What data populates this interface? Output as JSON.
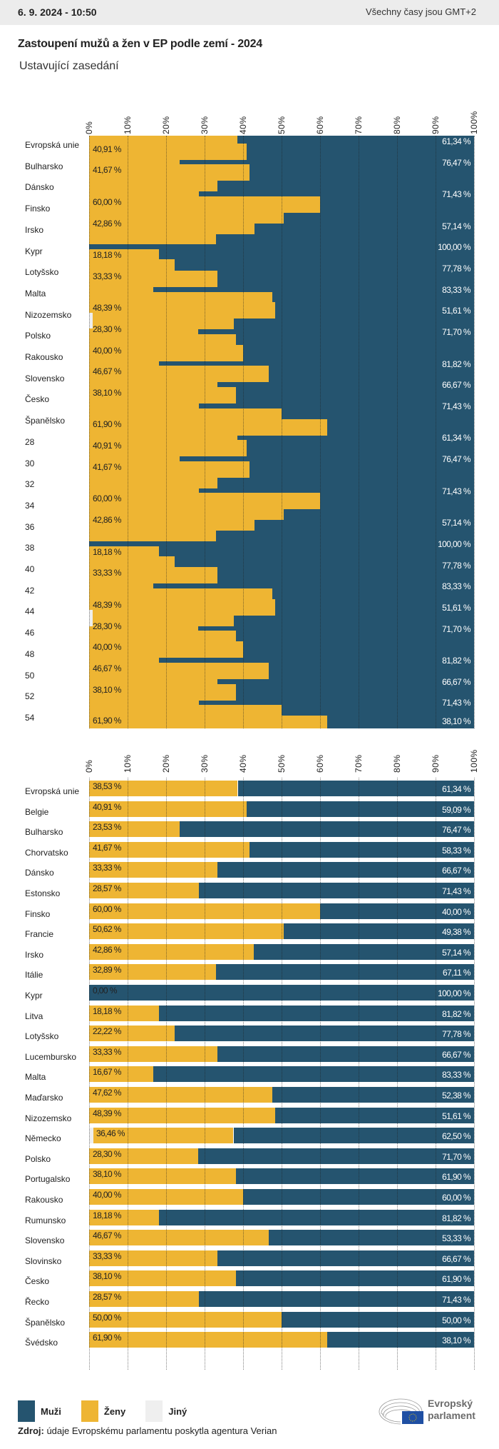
{
  "header": {
    "datetime": "6. 9. 2024 - 10:50",
    "timezone_note": "Všechny časy jsou GMT+2"
  },
  "title": "Zastoupení mužů a žen v EP podle zemí - 2024",
  "subtitle": "Ustavující zasedání",
  "colors": {
    "muzi": "#25546f",
    "zeny": "#eeb533",
    "jiny": "#efefef",
    "header_bg": "#ececec"
  },
  "chart_data": [
    {
      "type": "bar",
      "stacked": true,
      "orientation": "horizontal",
      "state": "transition rendering (bars overlapping)",
      "xlim": [
        0,
        100
      ],
      "x_ticks": [
        "0%",
        "10%",
        "20%",
        "30%",
        "40%",
        "50%",
        "60%",
        "70%",
        "80%",
        "90%",
        "100%"
      ],
      "row_labels": [
        "Evropská unie",
        "Bulharsko",
        "Dánsko",
        "Finsko",
        "Irsko",
        "Kypr",
        "Lotyšsko",
        "Malta",
        "Nizozemsko",
        "Polsko",
        "Rakousko",
        "Slovensko",
        "Česko",
        "Španělsko",
        "28",
        "30",
        "32",
        "34",
        "36",
        "38",
        "40",
        "42",
        "44",
        "46",
        "48",
        "50",
        "52",
        "54"
      ],
      "zeny_labels": [
        "40,91 %",
        "41,67 %",
        "60,00 %",
        "42,86 %",
        "18,18 %",
        "33,33 %",
        "48,39 %",
        "28,30 %",
        "40,00 %",
        "46,67 %",
        "38,10 %",
        "61,90 %",
        "40,91 %",
        "41,67 %",
        "60,00 %",
        "42,86 %",
        "18,18 %",
        "33,33 %",
        "48,39 %",
        "28,30 %",
        "40,00 %",
        "46,67 %",
        "38,10 %",
        "61,90 %"
      ],
      "muzi_labels": [
        "61,34 %",
        "76,47 %",
        "71,43 %",
        "57,14 %",
        "100,00 %",
        "77,78 %",
        "83,33 %",
        "51,61 %",
        "71,70 %",
        "81,82 %",
        "66,67 %",
        "71,43 %",
        "61,34 %",
        "76,47 %",
        "71,43 %",
        "57,14 %",
        "100,00 %",
        "77,78 %",
        "83,33 %",
        "51,61 %",
        "71,70 %",
        "81,82 %",
        "66,67 %",
        "71,43 %",
        "38,10 %"
      ],
      "zeny_fill_steps_pct": [
        38.5,
        40.9,
        23.5,
        41.7,
        33.3,
        28.6,
        60.0,
        50.6,
        42.9,
        32.9,
        0,
        18.2,
        22.2,
        33.3,
        16.7,
        47.6,
        48.4,
        37.5,
        28.3,
        38.1,
        40.0,
        18.2,
        46.7,
        33.3,
        38.1,
        28.6,
        50.0,
        61.9,
        38.5,
        40.9,
        23.5,
        41.7,
        33.3,
        28.6,
        60.0,
        50.6,
        42.9,
        32.9,
        0,
        18.2,
        22.2,
        33.3,
        16.7,
        47.6,
        48.4,
        37.5,
        28.3,
        38.1,
        40.0,
        18.2,
        46.7,
        33.3,
        38.1,
        28.6,
        50.0,
        61.9
      ]
    },
    {
      "type": "bar",
      "stacked": true,
      "orientation": "horizontal",
      "xlim": [
        0,
        100
      ],
      "grid": true,
      "x_ticks": [
        "0%",
        "10%",
        "20%",
        "30%",
        "40%",
        "50%",
        "60%",
        "70%",
        "80%",
        "90%",
        "100%"
      ],
      "categories": [
        "Evropská unie",
        "Belgie",
        "Bulharsko",
        "Chorvatsko",
        "Dánsko",
        "Estonsko",
        "Finsko",
        "Francie",
        "Irsko",
        "Itálie",
        "Kypr",
        "Litva",
        "Lotyšsko",
        "Lucembursko",
        "Malta",
        "Maďarsko",
        "Nizozemsko",
        "Německo",
        "Polsko",
        "Portugalsko",
        "Rakousko",
        "Rumunsko",
        "Slovensko",
        "Slovinsko",
        "Česko",
        "Řecko",
        "Španělsko",
        "Švédsko"
      ],
      "series": [
        {
          "name": "Ženy",
          "values": [
            38.53,
            40.91,
            23.53,
            41.67,
            33.33,
            28.57,
            60.0,
            50.62,
            42.86,
            32.89,
            0.0,
            18.18,
            22.22,
            33.33,
            16.67,
            47.62,
            48.39,
            36.46,
            28.3,
            38.1,
            40.0,
            18.18,
            46.67,
            33.33,
            38.1,
            28.57,
            50.0,
            61.9
          ],
          "labels": [
            "38,53 %",
            "40,91 %",
            "23,53 %",
            "41,67 %",
            "33,33 %",
            "28,57 %",
            "60,00 %",
            "50,62 %",
            "42,86 %",
            "32,89 %",
            "0,00 %",
            "18,18 %",
            "22,22 %",
            "33,33 %",
            "16,67 %",
            "47,62 %",
            "48,39 %",
            "36,46 %",
            "28,30 %",
            "38,10 %",
            "40,00 %",
            "18,18 %",
            "46,67 %",
            "33,33 %",
            "38,10 %",
            "28,57 %",
            "50,00 %",
            "61,90 %"
          ]
        },
        {
          "name": "Jiný",
          "values": [
            0.13,
            0,
            0,
            0,
            0,
            0,
            0,
            0,
            0,
            0,
            0,
            0,
            0,
            0,
            0,
            0,
            0,
            1.04,
            0,
            0,
            0,
            0,
            0,
            0,
            0,
            0,
            0,
            0
          ]
        },
        {
          "name": "Muži",
          "values": [
            61.34,
            59.09,
            76.47,
            58.33,
            66.67,
            71.43,
            40.0,
            49.38,
            57.14,
            67.11,
            100.0,
            81.82,
            77.78,
            66.67,
            83.33,
            52.38,
            51.61,
            62.5,
            71.7,
            61.9,
            60.0,
            81.82,
            53.33,
            66.67,
            61.9,
            71.43,
            50.0,
            38.1
          ],
          "labels": [
            "61,34 %",
            "59,09 %",
            "76,47 %",
            "58,33 %",
            "66,67 %",
            "71,43 %",
            "40,00 %",
            "49,38 %",
            "57,14 %",
            "67,11 %",
            "100,00 %",
            "81,82 %",
            "77,78 %",
            "66,67 %",
            "83,33 %",
            "52,38 %",
            "51,61 %",
            "62,50 %",
            "71,70 %",
            "61,90 %",
            "60,00 %",
            "81,82 %",
            "53,33 %",
            "66,67 %",
            "61,90 %",
            "71,43 %",
            "50,00 %",
            "38,10 %"
          ]
        }
      ]
    }
  ],
  "legend": [
    {
      "label": "Muži",
      "color": "#25546f"
    },
    {
      "label": "Ženy",
      "color": "#eeb533"
    },
    {
      "label": "Jiný",
      "color": "#efefef"
    }
  ],
  "source": {
    "label": "Zdroj:",
    "text": " údaje Evropskému parlamentu poskytla agentura Verian"
  },
  "logo": {
    "line1": "Evropský",
    "line2": "parlament"
  }
}
